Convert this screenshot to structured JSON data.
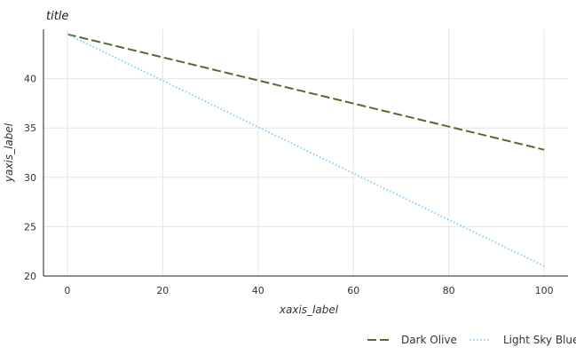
{
  "chart_data": {
    "type": "line",
    "title": "title",
    "xlabel": "xaxis_label",
    "ylabel": "yaxis_label",
    "xlim": [
      0,
      100
    ],
    "ylim": [
      20,
      45
    ],
    "xticks": [
      0,
      20,
      40,
      60,
      80,
      100
    ],
    "yticks": [
      20,
      25,
      30,
      35,
      40
    ],
    "grid": true,
    "legend_position": "bottom",
    "series": [
      {
        "name": "Dark Olive",
        "color": "#556b2f",
        "style": "dashed",
        "x": [
          0,
          100
        ],
        "y": [
          44.5,
          32.8
        ]
      },
      {
        "name": "Light Sky Blue",
        "color": "#87cefa",
        "style": "dotted",
        "x": [
          0,
          100
        ],
        "y": [
          44.5,
          21.0
        ]
      }
    ]
  }
}
